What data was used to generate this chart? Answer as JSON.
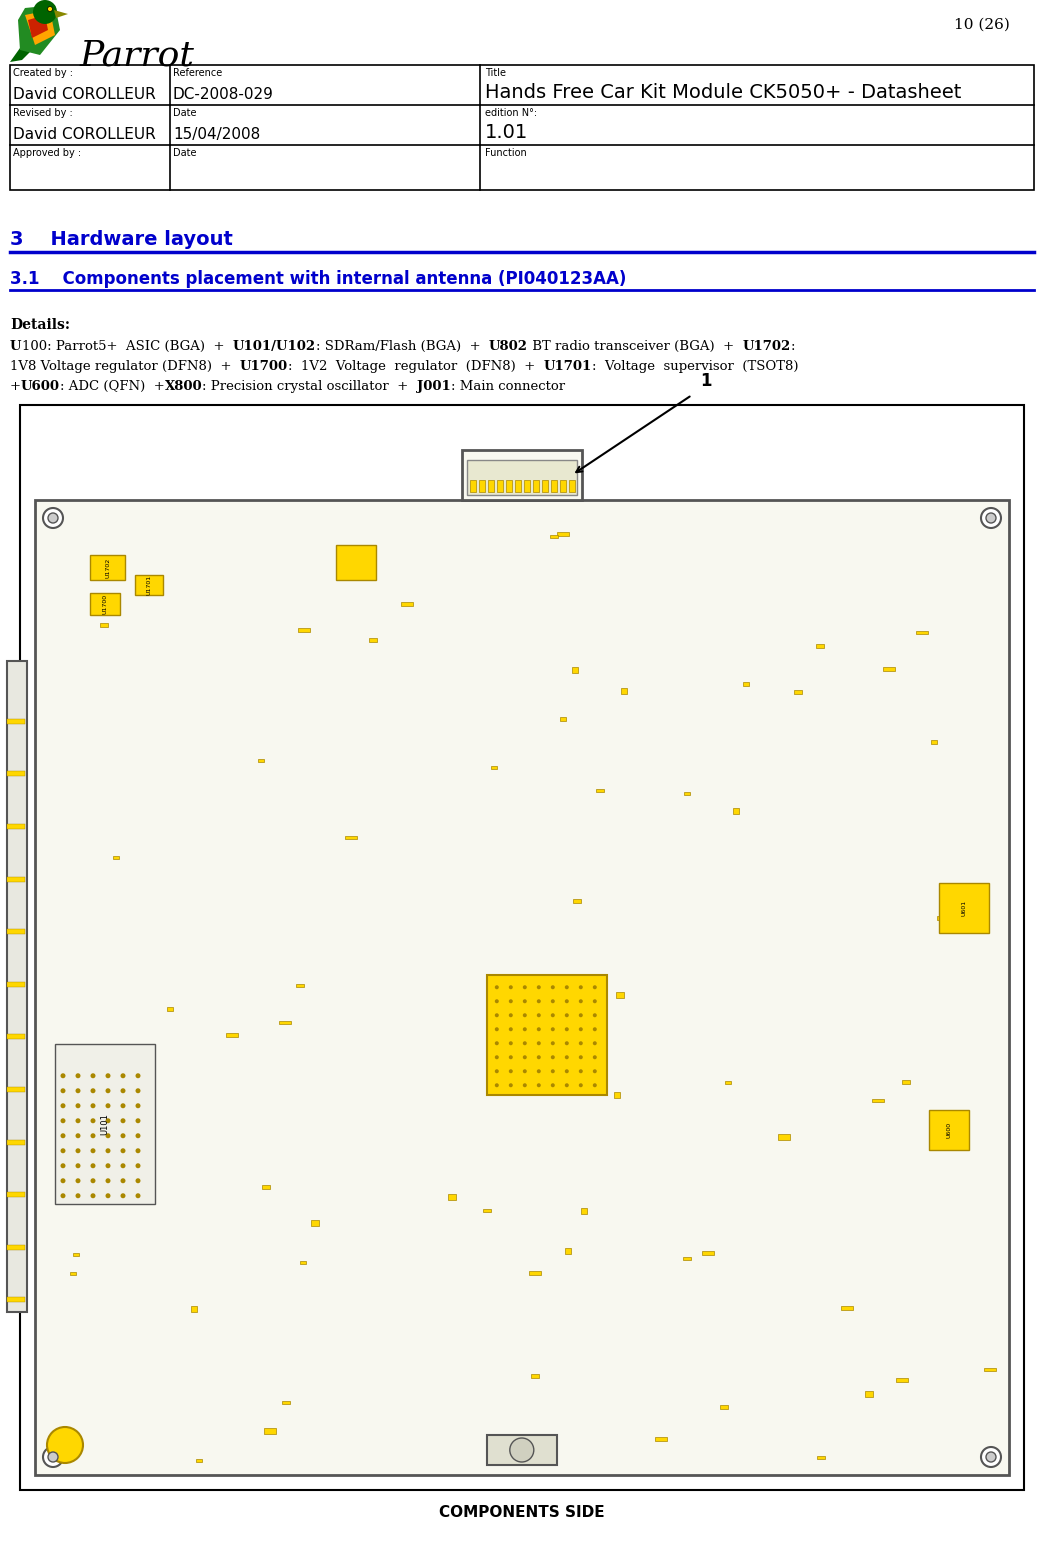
{
  "page_number": "10 (26)",
  "header": {
    "created_by_label": "Created by :",
    "created_by_value": "David COROLLEUR",
    "reference_label": "Reference",
    "reference_value": "DC-2008-029",
    "title_label": "Title",
    "title_value": "Hands Free Car Kit Module CK5050+ - Datasheet",
    "revised_by_label": "Revised by :",
    "revised_by_value": "David COROLLEUR",
    "date_label": "Date",
    "date_value": "15/04/2008",
    "edition_label": "edition N°:",
    "edition_value": "1.01",
    "approved_by_label": "Approved by :",
    "approved_date_label": "Date",
    "function_label": "Function"
  },
  "section_title": "3    Hardware layout",
  "subsection_title": "3.1    Components placement with internal antenna (PI040123AA)",
  "blue_color": "#0000CC",
  "details_bold": "Details:",
  "details_text_parts": [
    {
      "bold": true,
      "text": "U"
    },
    {
      "bold": false,
      "text": "100: Parrot5+ ASIC (BGA) + "
    },
    {
      "bold": true,
      "text": "U101/U102"
    },
    {
      "bold": false,
      "text": ": SDRam/Flash (BGA) + "
    },
    {
      "bold": true,
      "text": "U802"
    },
    {
      "bold": false,
      "text": " BT radio transceiver (BGA) + "
    },
    {
      "bold": true,
      "text": "U1702"
    },
    {
      "bold": false,
      "text": ":"
    },
    {
      "bold": false,
      "text": "\n1V8 Voltage regulator (DFN8) + "
    },
    {
      "bold": true,
      "text": "U1700"
    },
    {
      "bold": false,
      "text": ": 1V2 Voltage regulator (DFN8) + "
    },
    {
      "bold": true,
      "text": "U1701"
    },
    {
      "bold": false,
      "text": ": Voltage supervisor (TSOT8)\n+"
    },
    {
      "bold": true,
      "text": "U600"
    },
    {
      "bold": false,
      "text": ": ADC (QFN) +"
    },
    {
      "bold": true,
      "text": "X800"
    },
    {
      "bold": false,
      "text": ": Precision crystal oscillator + "
    },
    {
      "bold": true,
      "text": "J001"
    },
    {
      "bold": false,
      "text": ": Main connector"
    }
  ],
  "components_side_label": "COMPONENTS SIDE",
  "arrow_label": "1",
  "bg_color": "#ffffff",
  "border_color": "#000000",
  "pcb_bg": "#f5f5dc",
  "pcb_yellow": "#FFD700",
  "pcb_border": "#333333"
}
